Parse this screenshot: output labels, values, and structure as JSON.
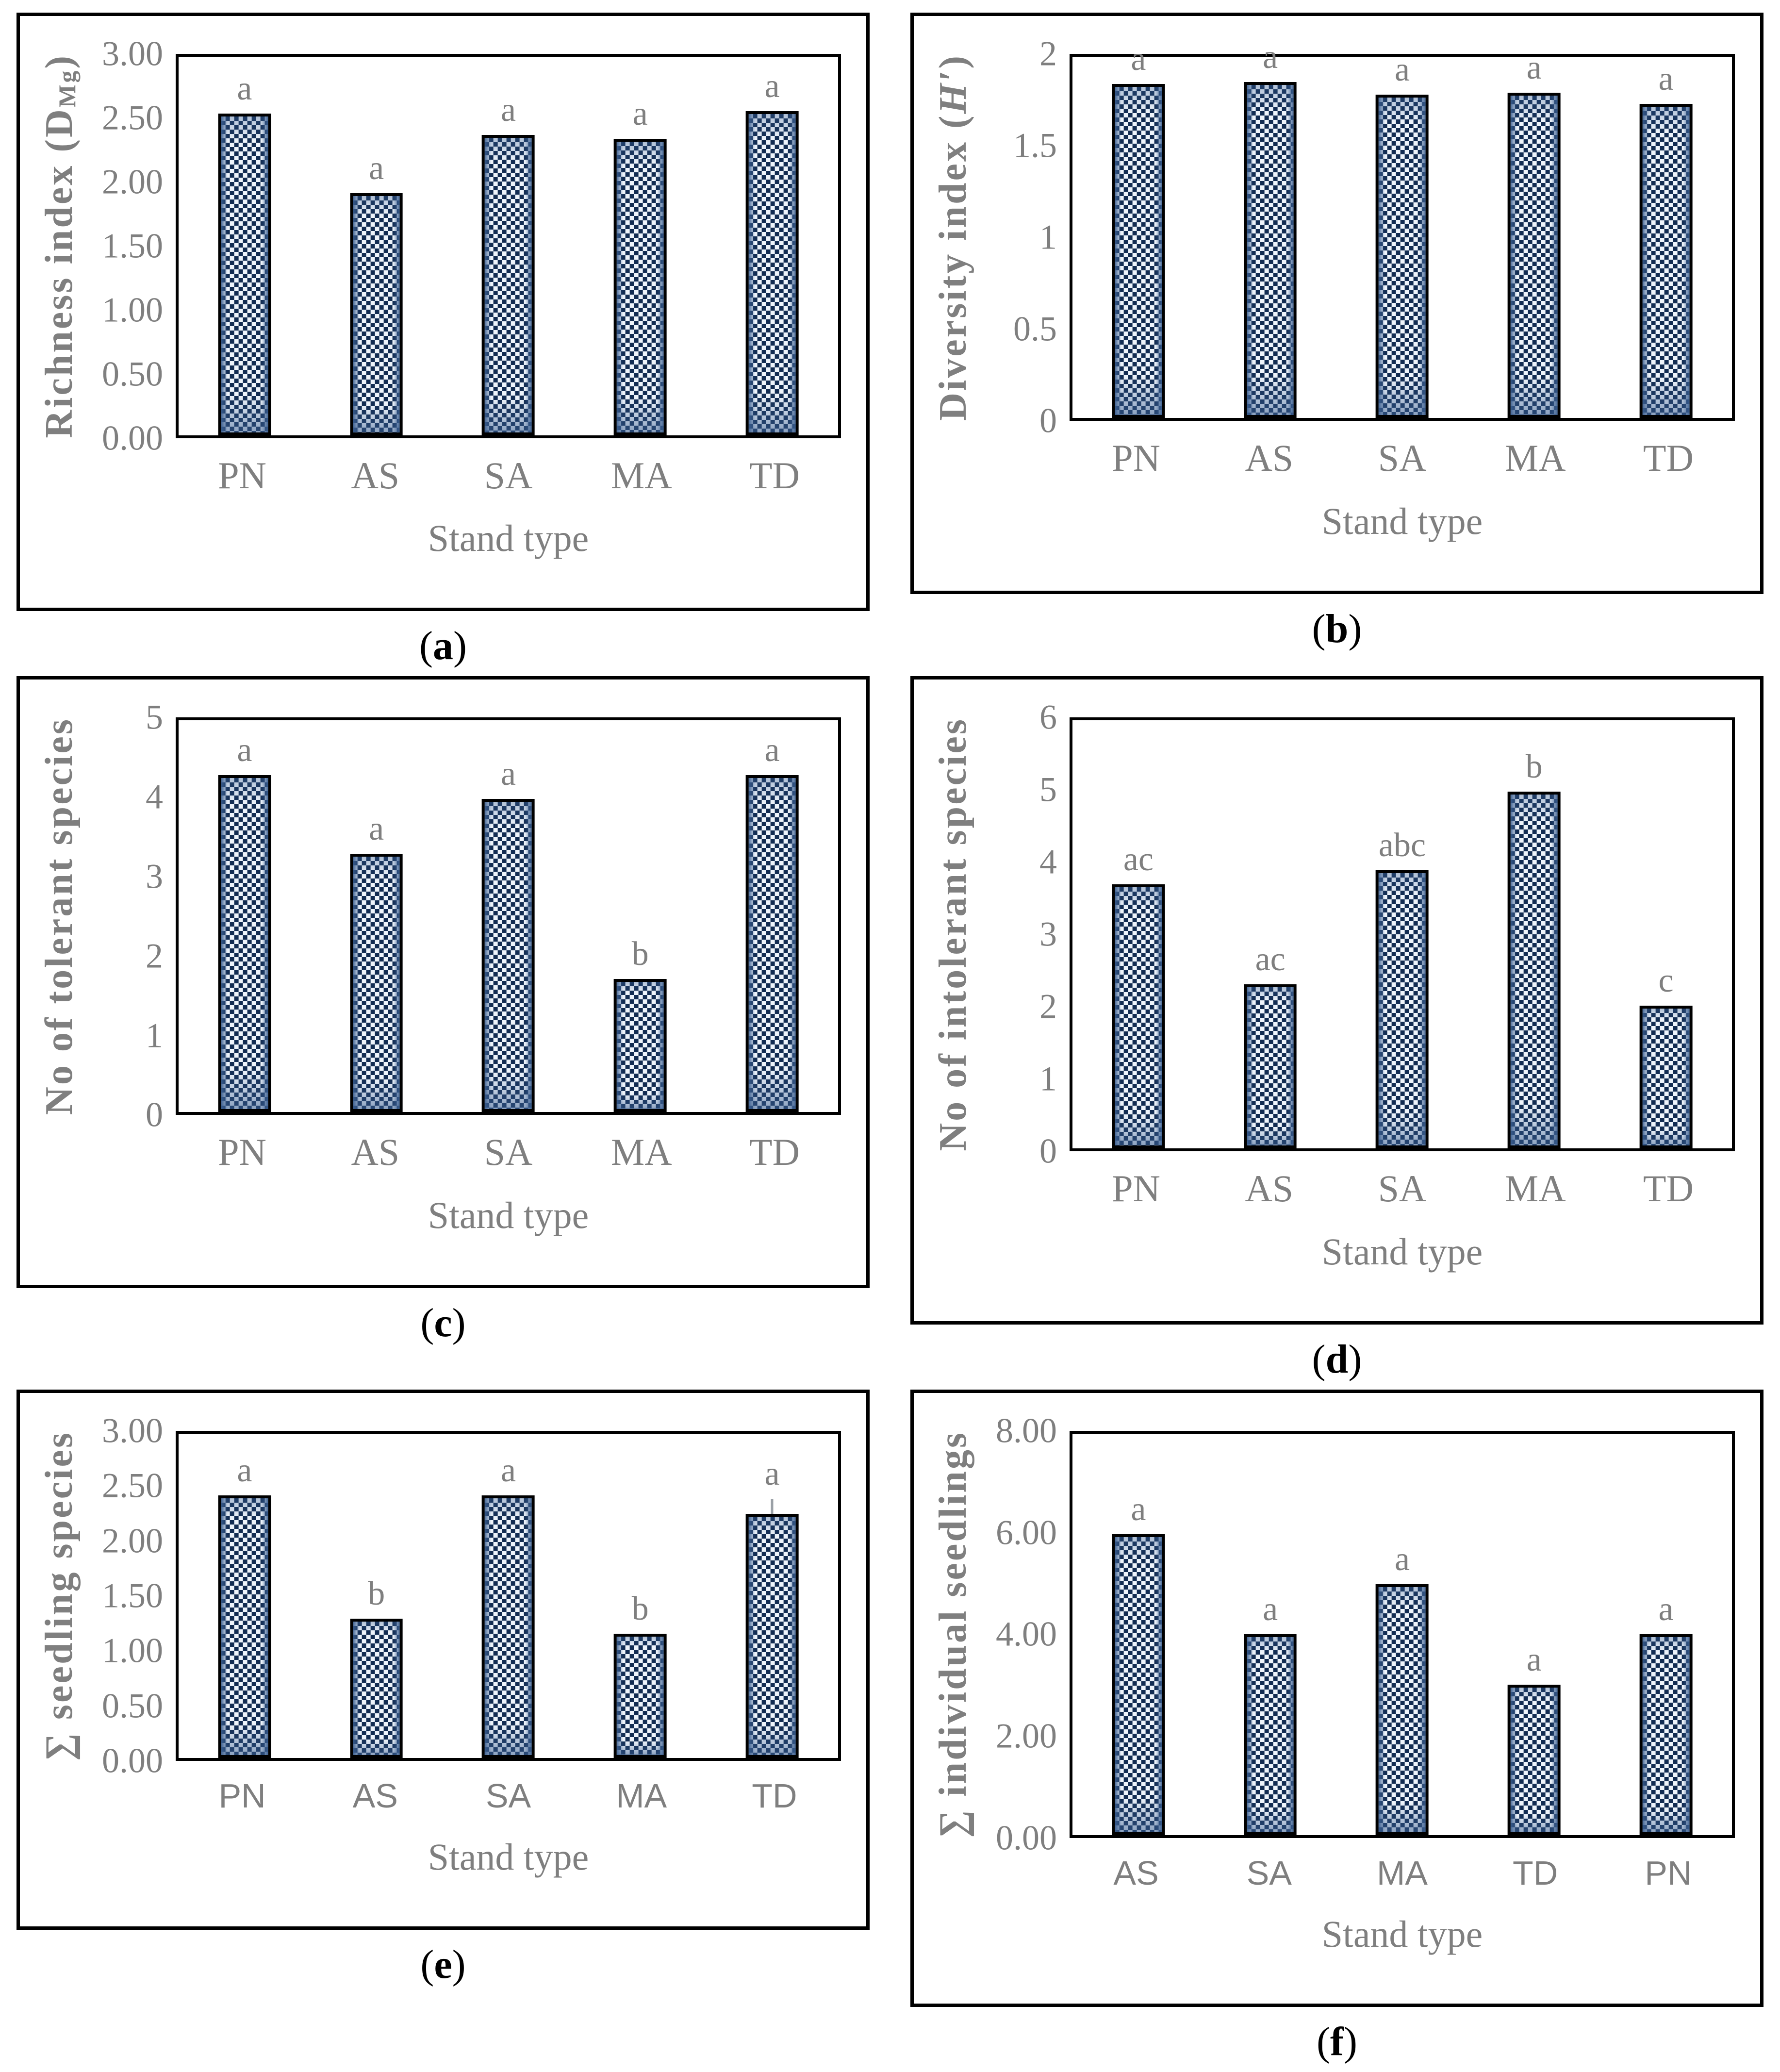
{
  "figure": {
    "background": "#ffffff",
    "text_gray": "#7f7f7f",
    "bar_checker_color": "#122c52",
    "bar_edge_blue": "#3a5e90",
    "bar_background": "#eef4fb",
    "frame_color": "#000000"
  },
  "chart_data": [
    {
      "type": "bar",
      "title": "",
      "ylabel": "Richness index (D_Mg)",
      "ylabel_runs": [
        {
          "t": "Richness index (D",
          "s": ""
        },
        {
          "t": "Mg",
          "s": "sub"
        },
        {
          "t": ")",
          "s": ""
        }
      ],
      "xlabel": "Stand type",
      "categories": [
        "PN",
        "AS",
        "SA",
        "MA",
        "TD"
      ],
      "values": [
        2.55,
        1.92,
        2.38,
        2.35,
        2.57
      ],
      "sig": [
        "a",
        "a",
        "a",
        "a",
        "a"
      ],
      "error_up": [
        0,
        0,
        0,
        0,
        0
      ],
      "yticks": [
        "3.00",
        "2.50",
        "2.00",
        "1.50",
        "1.00",
        "0.50",
        "0.00"
      ],
      "ylim": [
        0,
        3
      ],
      "grid": false,
      "xtick_font": "serif",
      "caption_open": "(",
      "caption_letter": "a",
      "caption_close": ")"
    },
    {
      "type": "bar",
      "title": "",
      "ylabel": "Diversity index (H′)",
      "ylabel_runs": [
        {
          "t": "Diversity index (",
          "s": ""
        },
        {
          "t": "H′",
          "s": "italic"
        },
        {
          "t": ")",
          "s": ""
        }
      ],
      "xlabel": "Stand type",
      "categories": [
        "PN",
        "AS",
        "SA",
        "MA",
        "TD"
      ],
      "values": [
        1.85,
        1.86,
        1.79,
        1.8,
        1.74
      ],
      "sig": [
        "a",
        "a",
        "a",
        "a",
        "a"
      ],
      "error_up": [
        0,
        0,
        0,
        0,
        0
      ],
      "yticks": [
        "2",
        "1.5",
        "1",
        "0.5",
        "0"
      ],
      "ylim": [
        0,
        2
      ],
      "grid": false,
      "xtick_font": "serif",
      "caption_open": "(",
      "caption_letter": "b",
      "caption_close": ")"
    },
    {
      "type": "bar",
      "title": "",
      "ylabel": "No of tolerant species",
      "ylabel_runs": [
        {
          "t": "No of tolerant species",
          "s": ""
        }
      ],
      "xlabel": "Stand type",
      "categories": [
        "PN",
        "AS",
        "SA",
        "MA",
        "TD"
      ],
      "values": [
        4.3,
        3.3,
        4.0,
        1.7,
        4.3
      ],
      "sig": [
        "a",
        "a",
        "a",
        "b",
        "a"
      ],
      "error_up": [
        0,
        0,
        0,
        0,
        0
      ],
      "yticks": [
        "5",
        "4",
        "3",
        "2",
        "1",
        "0"
      ],
      "ylim": [
        0,
        5
      ],
      "grid": false,
      "xtick_font": "serif",
      "caption_open": "(",
      "caption_letter": "c",
      "caption_close": ")"
    },
    {
      "type": "bar",
      "title": "",
      "ylabel": "No of intolerant species",
      "ylabel_runs": [
        {
          "t": "No of intolerant species",
          "s": ""
        }
      ],
      "xlabel": "Stand type",
      "categories": [
        "PN",
        "AS",
        "SA",
        "MA",
        "TD"
      ],
      "values": [
        3.7,
        2.3,
        3.9,
        5.0,
        2.0
      ],
      "sig": [
        "ac",
        "ac",
        "abc",
        "b",
        "c"
      ],
      "error_up": [
        0,
        0,
        0,
        0,
        0
      ],
      "yticks": [
        "6",
        "5",
        "4",
        "3",
        "2",
        "1",
        "0"
      ],
      "ylim": [
        0,
        6
      ],
      "grid": false,
      "xtick_font": "serif",
      "caption_open": "(",
      "caption_letter": "d",
      "caption_close": ")"
    },
    {
      "type": "bar",
      "title": "",
      "ylabel": "∑ seedling species",
      "ylabel_runs": [
        {
          "t": "∑ seedling species",
          "s": ""
        }
      ],
      "xlabel": "Stand type",
      "categories": [
        "PN",
        "AS",
        "SA",
        "MA",
        "TD"
      ],
      "values": [
        2.43,
        1.29,
        2.43,
        1.15,
        2.26
      ],
      "sig": [
        "a",
        "b",
        "a",
        "b",
        "a"
      ],
      "error_up": [
        0,
        0,
        0,
        0,
        0.14
      ],
      "yticks": [
        "3.00",
        "2.50",
        "2.00",
        "1.50",
        "1.00",
        "0.50",
        "0.00"
      ],
      "ylim": [
        0,
        3
      ],
      "grid": false,
      "xtick_font": "sans",
      "caption_open": "(",
      "caption_letter": "e",
      "caption_close": ")"
    },
    {
      "type": "bar",
      "title": "",
      "ylabel": "∑ individual seedlings",
      "ylabel_runs": [
        {
          "t": "∑ individual seedlings",
          "s": ""
        }
      ],
      "xlabel": "Stand type",
      "categories": [
        "AS",
        "SA",
        "MA",
        "TD",
        "PN"
      ],
      "values": [
        6.0,
        4.0,
        5.0,
        3.0,
        4.0
      ],
      "sig": [
        "a",
        "a",
        "a",
        "a",
        "a"
      ],
      "error_up": [
        0,
        0,
        0,
        0,
        0
      ],
      "yticks": [
        "8.00",
        "6.00",
        "4.00",
        "2.00",
        "0.00"
      ],
      "ylim": [
        0,
        8
      ],
      "grid": false,
      "xtick_font": "sans",
      "caption_open": "(",
      "caption_letter": "f",
      "caption_close": ")"
    }
  ]
}
